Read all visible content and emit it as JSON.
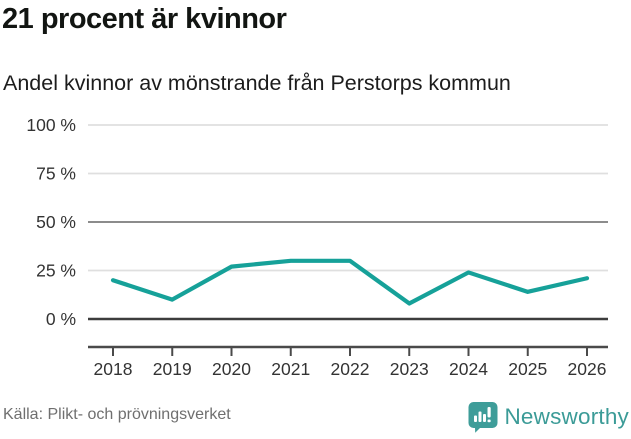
{
  "header": {
    "title": "21 procent är kvinnor",
    "subtitle": "Andel kvinnor av mönstrande från Perstorps kommun"
  },
  "chart_data": {
    "type": "line",
    "title": "21 procent är kvinnor",
    "subtitle": "Andel kvinnor av mönstrande från Perstorps kommun",
    "categories": [
      "2018",
      "2019",
      "2020",
      "2021",
      "2022",
      "2023",
      "2024",
      "2025",
      "2026"
    ],
    "values": [
      20,
      10,
      27,
      30,
      30,
      8,
      24,
      14,
      21
    ],
    "y_ticks": [
      {
        "value": 0,
        "label": "0 %"
      },
      {
        "value": 25,
        "label": "25 %"
      },
      {
        "value": 50,
        "label": "50 %"
      },
      {
        "value": 75,
        "label": "75 %"
      },
      {
        "value": 100,
        "label": "100 %"
      }
    ],
    "ylim": [
      0,
      100
    ],
    "xlabel": "",
    "ylabel": "",
    "grid": "horizontal",
    "legend": "none",
    "line_color": "#16A199"
  },
  "footer": {
    "source": "Källa: Plikt- och prövningsverket",
    "brand": "Newsworthy",
    "logo_icon": "bar-chart-speech-bubble"
  },
  "colors": {
    "accent_teal": "#16A199",
    "logo_teal": "#3E9D99",
    "wordmark_teal": "#3B9B97",
    "axis_dark": "#3D3D3D",
    "baseline_dark": "#4A4A4A",
    "grid_mid": "#8C8C8C",
    "grid_light": "#DFDFDF",
    "text_dark": "#121512",
    "text_muted": "#6F6F6F",
    "background": "#FFFFFF"
  }
}
